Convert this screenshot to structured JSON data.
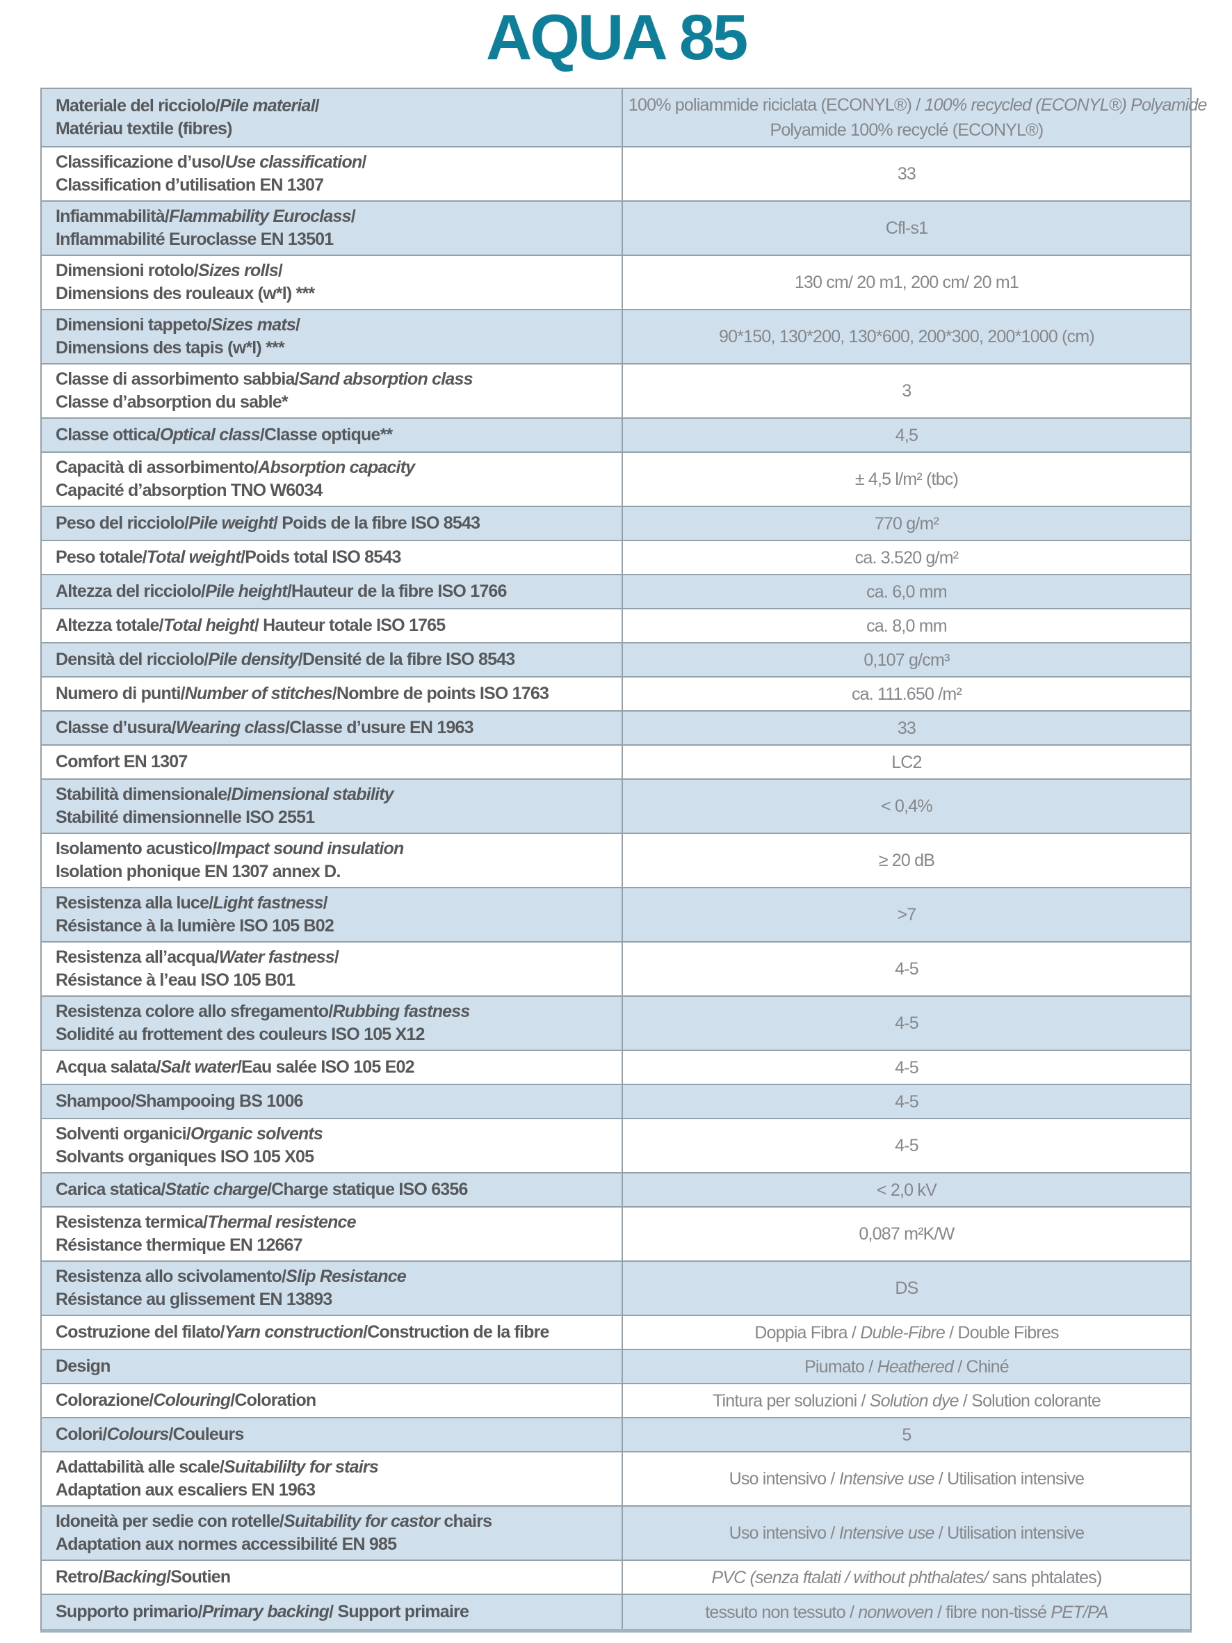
{
  "title": "AQUA 85",
  "colors": {
    "accent_teal": "#0e7e99",
    "row_blue": "#cfe0ec",
    "row_white": "#ffffff",
    "border_gray": "#95a1a9",
    "bottom_border": "#9fb4bf",
    "label_text": "#57585a",
    "value_text": "#85878a"
  },
  "table": {
    "rows": [
      {
        "label": [
          [
            {
              "t": "Materiale del ricciolo/"
            },
            {
              "t": "Pile material",
              "i": true
            },
            {
              "t": "/"
            }
          ],
          [
            {
              "t": "Matériau textile (fibres)"
            }
          ]
        ],
        "value": [
          [
            {
              "t": "100% poliammide riciclata (ECONYL®) / "
            },
            {
              "t": "100% recycled (ECONYL®) Polyamide",
              "i": true
            }
          ],
          [
            {
              "t": "Polyamide 100% recyclé (ECONYL®)"
            }
          ]
        ]
      },
      {
        "label": [
          [
            {
              "t": "Classificazione d’uso/"
            },
            {
              "t": "Use classification",
              "i": true
            },
            {
              "t": "/"
            }
          ],
          [
            {
              "t": "Classification d’utilisation EN 1307"
            }
          ]
        ],
        "value": [
          [
            {
              "t": "33"
            }
          ]
        ]
      },
      {
        "label": [
          [
            {
              "t": "Infiammabilità/"
            },
            {
              "t": "Flammability Euroclass",
              "i": true
            },
            {
              "t": "/"
            }
          ],
          [
            {
              "t": "Inflammabilité Euroclasse EN 13501"
            }
          ]
        ],
        "value": [
          [
            {
              "t": "Cfl-s1"
            }
          ]
        ]
      },
      {
        "label": [
          [
            {
              "t": "Dimensioni rotolo/"
            },
            {
              "t": "Sizes rolls",
              "i": true
            },
            {
              "t": "/"
            }
          ],
          [
            {
              "t": "Dimensions des rouleaux (w*l) ***"
            }
          ]
        ],
        "value": [
          [
            {
              "t": "130 cm/ 20 m1, 200 cm/ 20 m1"
            }
          ]
        ]
      },
      {
        "label": [
          [
            {
              "t": "Dimensioni tappeto/"
            },
            {
              "t": "Sizes mats",
              "i": true
            },
            {
              "t": "/"
            }
          ],
          [
            {
              "t": "Dimensions des tapis (w*l) ***"
            }
          ]
        ],
        "value": [
          [
            {
              "t": "90*150, 130*200, 130*600, 200*300, 200*1000 (cm)"
            }
          ]
        ]
      },
      {
        "label": [
          [
            {
              "t": "Classe di assorbimento sabbia/"
            },
            {
              "t": "Sand absorption class",
              "i": true
            }
          ],
          [
            {
              "t": "Classe d’absorption du sable*"
            }
          ]
        ],
        "value": [
          [
            {
              "t": "3"
            }
          ]
        ]
      },
      {
        "label": [
          [
            {
              "t": "Classe ottica/"
            },
            {
              "t": "Optical class",
              "i": true
            },
            {
              "t": "/Classe optique**"
            }
          ]
        ],
        "value": [
          [
            {
              "t": "4,5"
            }
          ]
        ]
      },
      {
        "label": [
          [
            {
              "t": "Capacità di assorbimento/"
            },
            {
              "t": "Absorption capacity",
              "i": true
            }
          ],
          [
            {
              "t": "Capacité d’absorption TNO W6034"
            }
          ]
        ],
        "value": [
          [
            {
              "t": "± 4,5 l/m² (tbc)"
            }
          ]
        ]
      },
      {
        "label": [
          [
            {
              "t": "Peso del ricciolo/"
            },
            {
              "t": "Pile weight",
              "i": true
            },
            {
              "t": "/ Poids de la fibre ISO 8543"
            }
          ]
        ],
        "value": [
          [
            {
              "t": "770 g/m²"
            }
          ]
        ]
      },
      {
        "label": [
          [
            {
              "t": "Peso totale/"
            },
            {
              "t": "Total weight",
              "i": true
            },
            {
              "t": "/Poids total ISO 8543"
            }
          ]
        ],
        "value": [
          [
            {
              "t": "ca. 3.520 g/m²"
            }
          ]
        ]
      },
      {
        "label": [
          [
            {
              "t": "Altezza del ricciolo/"
            },
            {
              "t": "Pile height",
              "i": true
            },
            {
              "t": "/Hauteur de la fibre ISO 1766"
            }
          ]
        ],
        "value": [
          [
            {
              "t": "ca. 6,0 mm"
            }
          ]
        ]
      },
      {
        "label": [
          [
            {
              "t": "Altezza totale/"
            },
            {
              "t": "Total height",
              "i": true
            },
            {
              "t": "/ Hauteur totale ISO 1765"
            }
          ]
        ],
        "value": [
          [
            {
              "t": "ca. 8,0 mm"
            }
          ]
        ]
      },
      {
        "label": [
          [
            {
              "t": "Densità del ricciolo/"
            },
            {
              "t": "Pile density",
              "i": true
            },
            {
              "t": "/Densité de la fibre ISO 8543"
            }
          ]
        ],
        "value": [
          [
            {
              "t": "0,107 g/cm³"
            }
          ]
        ]
      },
      {
        "label": [
          [
            {
              "t": "Numero di punti/"
            },
            {
              "t": "Number of stitches",
              "i": true
            },
            {
              "t": "/Nombre de points ISO 1763"
            }
          ]
        ],
        "value": [
          [
            {
              "t": "ca. 111.650 /m²"
            }
          ]
        ]
      },
      {
        "label": [
          [
            {
              "t": "Classe d’usura/"
            },
            {
              "t": "Wearing class",
              "i": true
            },
            {
              "t": "/Classe d’usure EN 1963"
            }
          ]
        ],
        "value": [
          [
            {
              "t": "33"
            }
          ]
        ]
      },
      {
        "label": [
          [
            {
              "t": "Comfort EN 1307"
            }
          ]
        ],
        "value": [
          [
            {
              "t": "LC2"
            }
          ]
        ]
      },
      {
        "label": [
          [
            {
              "t": "Stabilità dimensionale/"
            },
            {
              "t": "Dimensional stability",
              "i": true
            }
          ],
          [
            {
              "t": "Stabilité dimensionnelle ISO 2551"
            }
          ]
        ],
        "value": [
          [
            {
              "t": "< 0,4%"
            }
          ]
        ]
      },
      {
        "label": [
          [
            {
              "t": "Isolamento acustico/"
            },
            {
              "t": "Impact sound insulation",
              "i": true
            }
          ],
          [
            {
              "t": "Isolation phonique EN 1307 annex D."
            }
          ]
        ],
        "value": [
          [
            {
              "t": "≥ 20 dB"
            }
          ]
        ]
      },
      {
        "label": [
          [
            {
              "t": "Resistenza alla luce/"
            },
            {
              "t": "Light fastness",
              "i": true
            },
            {
              "t": "/"
            }
          ],
          [
            {
              "t": "Résistance à la lumière ISO 105 B02"
            }
          ]
        ],
        "value": [
          [
            {
              "t": ">7"
            }
          ]
        ]
      },
      {
        "label": [
          [
            {
              "t": "Resistenza all’acqua/"
            },
            {
              "t": "Water fastness",
              "i": true
            },
            {
              "t": "/"
            }
          ],
          [
            {
              "t": "Résistance à l’eau ISO 105 B01"
            }
          ]
        ],
        "value": [
          [
            {
              "t": "4-5"
            }
          ]
        ]
      },
      {
        "label": [
          [
            {
              "t": "Resistenza colore allo sfregamento/"
            },
            {
              "t": "Rubbing fastness",
              "i": true
            }
          ],
          [
            {
              "t": "Solidité au frottement des couleurs ISO 105 X12"
            }
          ]
        ],
        "value": [
          [
            {
              "t": "4-5"
            }
          ]
        ]
      },
      {
        "label": [
          [
            {
              "t": "Acqua salata/"
            },
            {
              "t": "Salt water",
              "i": true
            },
            {
              "t": "/Eau salée ISO 105 E02"
            }
          ]
        ],
        "value": [
          [
            {
              "t": "4-5"
            }
          ]
        ]
      },
      {
        "label": [
          [
            {
              "t": "Shampoo/Shampooing BS 1006"
            }
          ]
        ],
        "value": [
          [
            {
              "t": "4-5"
            }
          ]
        ]
      },
      {
        "label": [
          [
            {
              "t": "Solventi organici/"
            },
            {
              "t": "Organic solvents",
              "i": true
            }
          ],
          [
            {
              "t": "Solvants organiques ISO 105 X05"
            }
          ]
        ],
        "value": [
          [
            {
              "t": "4-5"
            }
          ]
        ]
      },
      {
        "label": [
          [
            {
              "t": "Carica statica/"
            },
            {
              "t": "Static charge",
              "i": true
            },
            {
              "t": "/Charge statique ISO 6356"
            }
          ]
        ],
        "value": [
          [
            {
              "t": "< 2,0 kV"
            }
          ]
        ]
      },
      {
        "label": [
          [
            {
              "t": "Resistenza termica/"
            },
            {
              "t": "Thermal resistence",
              "i": true
            }
          ],
          [
            {
              "t": "Résistance thermique EN 12667"
            }
          ]
        ],
        "value": [
          [
            {
              "t": "0,087 m²K/W"
            }
          ]
        ]
      },
      {
        "label": [
          [
            {
              "t": "Resistenza allo scivolamento/"
            },
            {
              "t": "Slip Resistance",
              "i": true
            }
          ],
          [
            {
              "t": "Résistance au glissement EN 13893"
            }
          ]
        ],
        "value": [
          [
            {
              "t": "DS"
            }
          ]
        ]
      },
      {
        "label": [
          [
            {
              "t": "Costruzione del filato/"
            },
            {
              "t": "Yarn construction",
              "i": true
            },
            {
              "t": "/Construction de la fibre"
            }
          ]
        ],
        "value": [
          [
            {
              "t": "Doppia Fibra / "
            },
            {
              "t": "Duble-Fibre",
              "i": true
            },
            {
              "t": " / Double Fibres"
            }
          ]
        ]
      },
      {
        "label": [
          [
            {
              "t": "Design"
            }
          ]
        ],
        "value": [
          [
            {
              "t": "Piumato / "
            },
            {
              "t": "Heathered",
              "i": true
            },
            {
              "t": " / Chiné"
            }
          ]
        ]
      },
      {
        "label": [
          [
            {
              "t": "Colorazione/"
            },
            {
              "t": "Colouring",
              "i": true
            },
            {
              "t": "/Coloration"
            }
          ]
        ],
        "value": [
          [
            {
              "t": "Tintura per soluzioni / "
            },
            {
              "t": "Solution dye",
              "i": true
            },
            {
              "t": " / Solution colorante"
            }
          ]
        ]
      },
      {
        "label": [
          [
            {
              "t": "Colori/"
            },
            {
              "t": "Colours",
              "i": true
            },
            {
              "t": "/Couleurs"
            }
          ]
        ],
        "value": [
          [
            {
              "t": "5"
            }
          ]
        ]
      },
      {
        "label": [
          [
            {
              "t": "Adattabilità alle scale/"
            },
            {
              "t": "Suitabililty for stairs",
              "i": true
            }
          ],
          [
            {
              "t": "Adaptation aux escaliers EN 1963"
            }
          ]
        ],
        "value": [
          [
            {
              "t": "Uso intensivo / "
            },
            {
              "t": "Intensive use",
              "i": true
            },
            {
              "t": " / Utilisation intensive"
            }
          ]
        ]
      },
      {
        "label": [
          [
            {
              "t": "Idoneità per sedie con rotelle/"
            },
            {
              "t": "Suitability for castor",
              "i": true
            },
            {
              "t": " chairs"
            }
          ],
          [
            {
              "t": "Adaptation aux normes accessibilité EN 985"
            }
          ]
        ],
        "value": [
          [
            {
              "t": "Uso intensivo / "
            },
            {
              "t": "Intensive use",
              "i": true
            },
            {
              "t": " / Utilisation intensive"
            }
          ]
        ]
      },
      {
        "label": [
          [
            {
              "t": "Retro/"
            },
            {
              "t": "Backing",
              "i": true
            },
            {
              "t": "/Soutien"
            }
          ]
        ],
        "value": [
          [
            {
              "t": "PVC (senza ftalati / without phthalates/",
              "i": true
            },
            {
              "t": " sans phtalates)"
            }
          ]
        ]
      },
      {
        "label": [
          [
            {
              "t": "Supporto primario/"
            },
            {
              "t": "Primary backing",
              "i": true
            },
            {
              "t": "/ Support primaire"
            }
          ]
        ],
        "value": [
          [
            {
              "t": "tessuto non tessuto / "
            },
            {
              "t": "nonwoven",
              "i": true
            },
            {
              "t": " / fibre non-tissé "
            },
            {
              "t": "PET/PA",
              "i": true
            }
          ]
        ]
      }
    ]
  }
}
